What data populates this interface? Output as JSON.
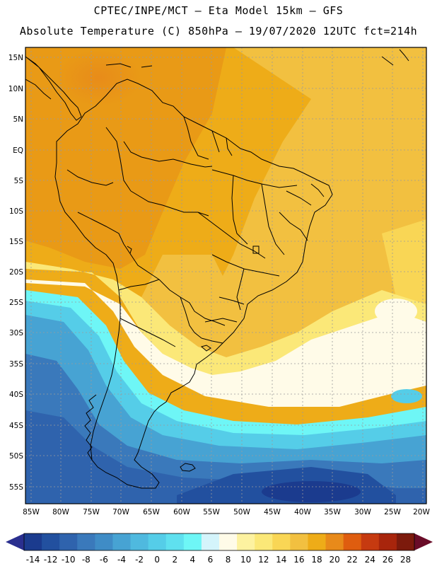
{
  "header": {
    "line1": "CPTEC/INPE/MCT –  Eta Model 15km – GFS",
    "line2": "Absolute Temperature (C) 850hPa – 19/07/2020 12UTC fct=214h"
  },
  "map": {
    "lat_ticks": [
      "15N",
      "10N",
      "5N",
      "EQ",
      "5S",
      "10S",
      "15S",
      "20S",
      "25S",
      "30S",
      "35S",
      "40S",
      "45S",
      "50S",
      "55S"
    ],
    "lon_ticks": [
      "85W",
      "80W",
      "75W",
      "70W",
      "65W",
      "60W",
      "55W",
      "50W",
      "45W",
      "40W",
      "35W",
      "30W",
      "25W",
      "20W"
    ],
    "region": "South America",
    "border_color": "#000000",
    "grid_color": "#9a9a9a"
  },
  "colorbar": {
    "labels": [
      "-14",
      "-12",
      "-10",
      "-8",
      "-6",
      "-4",
      "-2",
      "0",
      "2",
      "4",
      "6",
      "8",
      "10",
      "12",
      "14",
      "16",
      "18",
      "20",
      "22",
      "24",
      "26",
      "28"
    ],
    "colors": [
      "#1b3b8e",
      "#22509f",
      "#2f63ad",
      "#3a79bb",
      "#3f8cc6",
      "#47a3d3",
      "#4fb9df",
      "#55cde8",
      "#5fe0ef",
      "#6ef6f6",
      "#d4f4fb",
      "#fffbe8",
      "#fdf2a0",
      "#fbe878",
      "#f9d655",
      "#f2c040",
      "#eeac18",
      "#e88a1a",
      "#df5d0f",
      "#c63a10",
      "#a8250c",
      "#7c1a0c"
    ],
    "under_color": "#2a2f8f",
    "over_color": "#6a0c28"
  }
}
